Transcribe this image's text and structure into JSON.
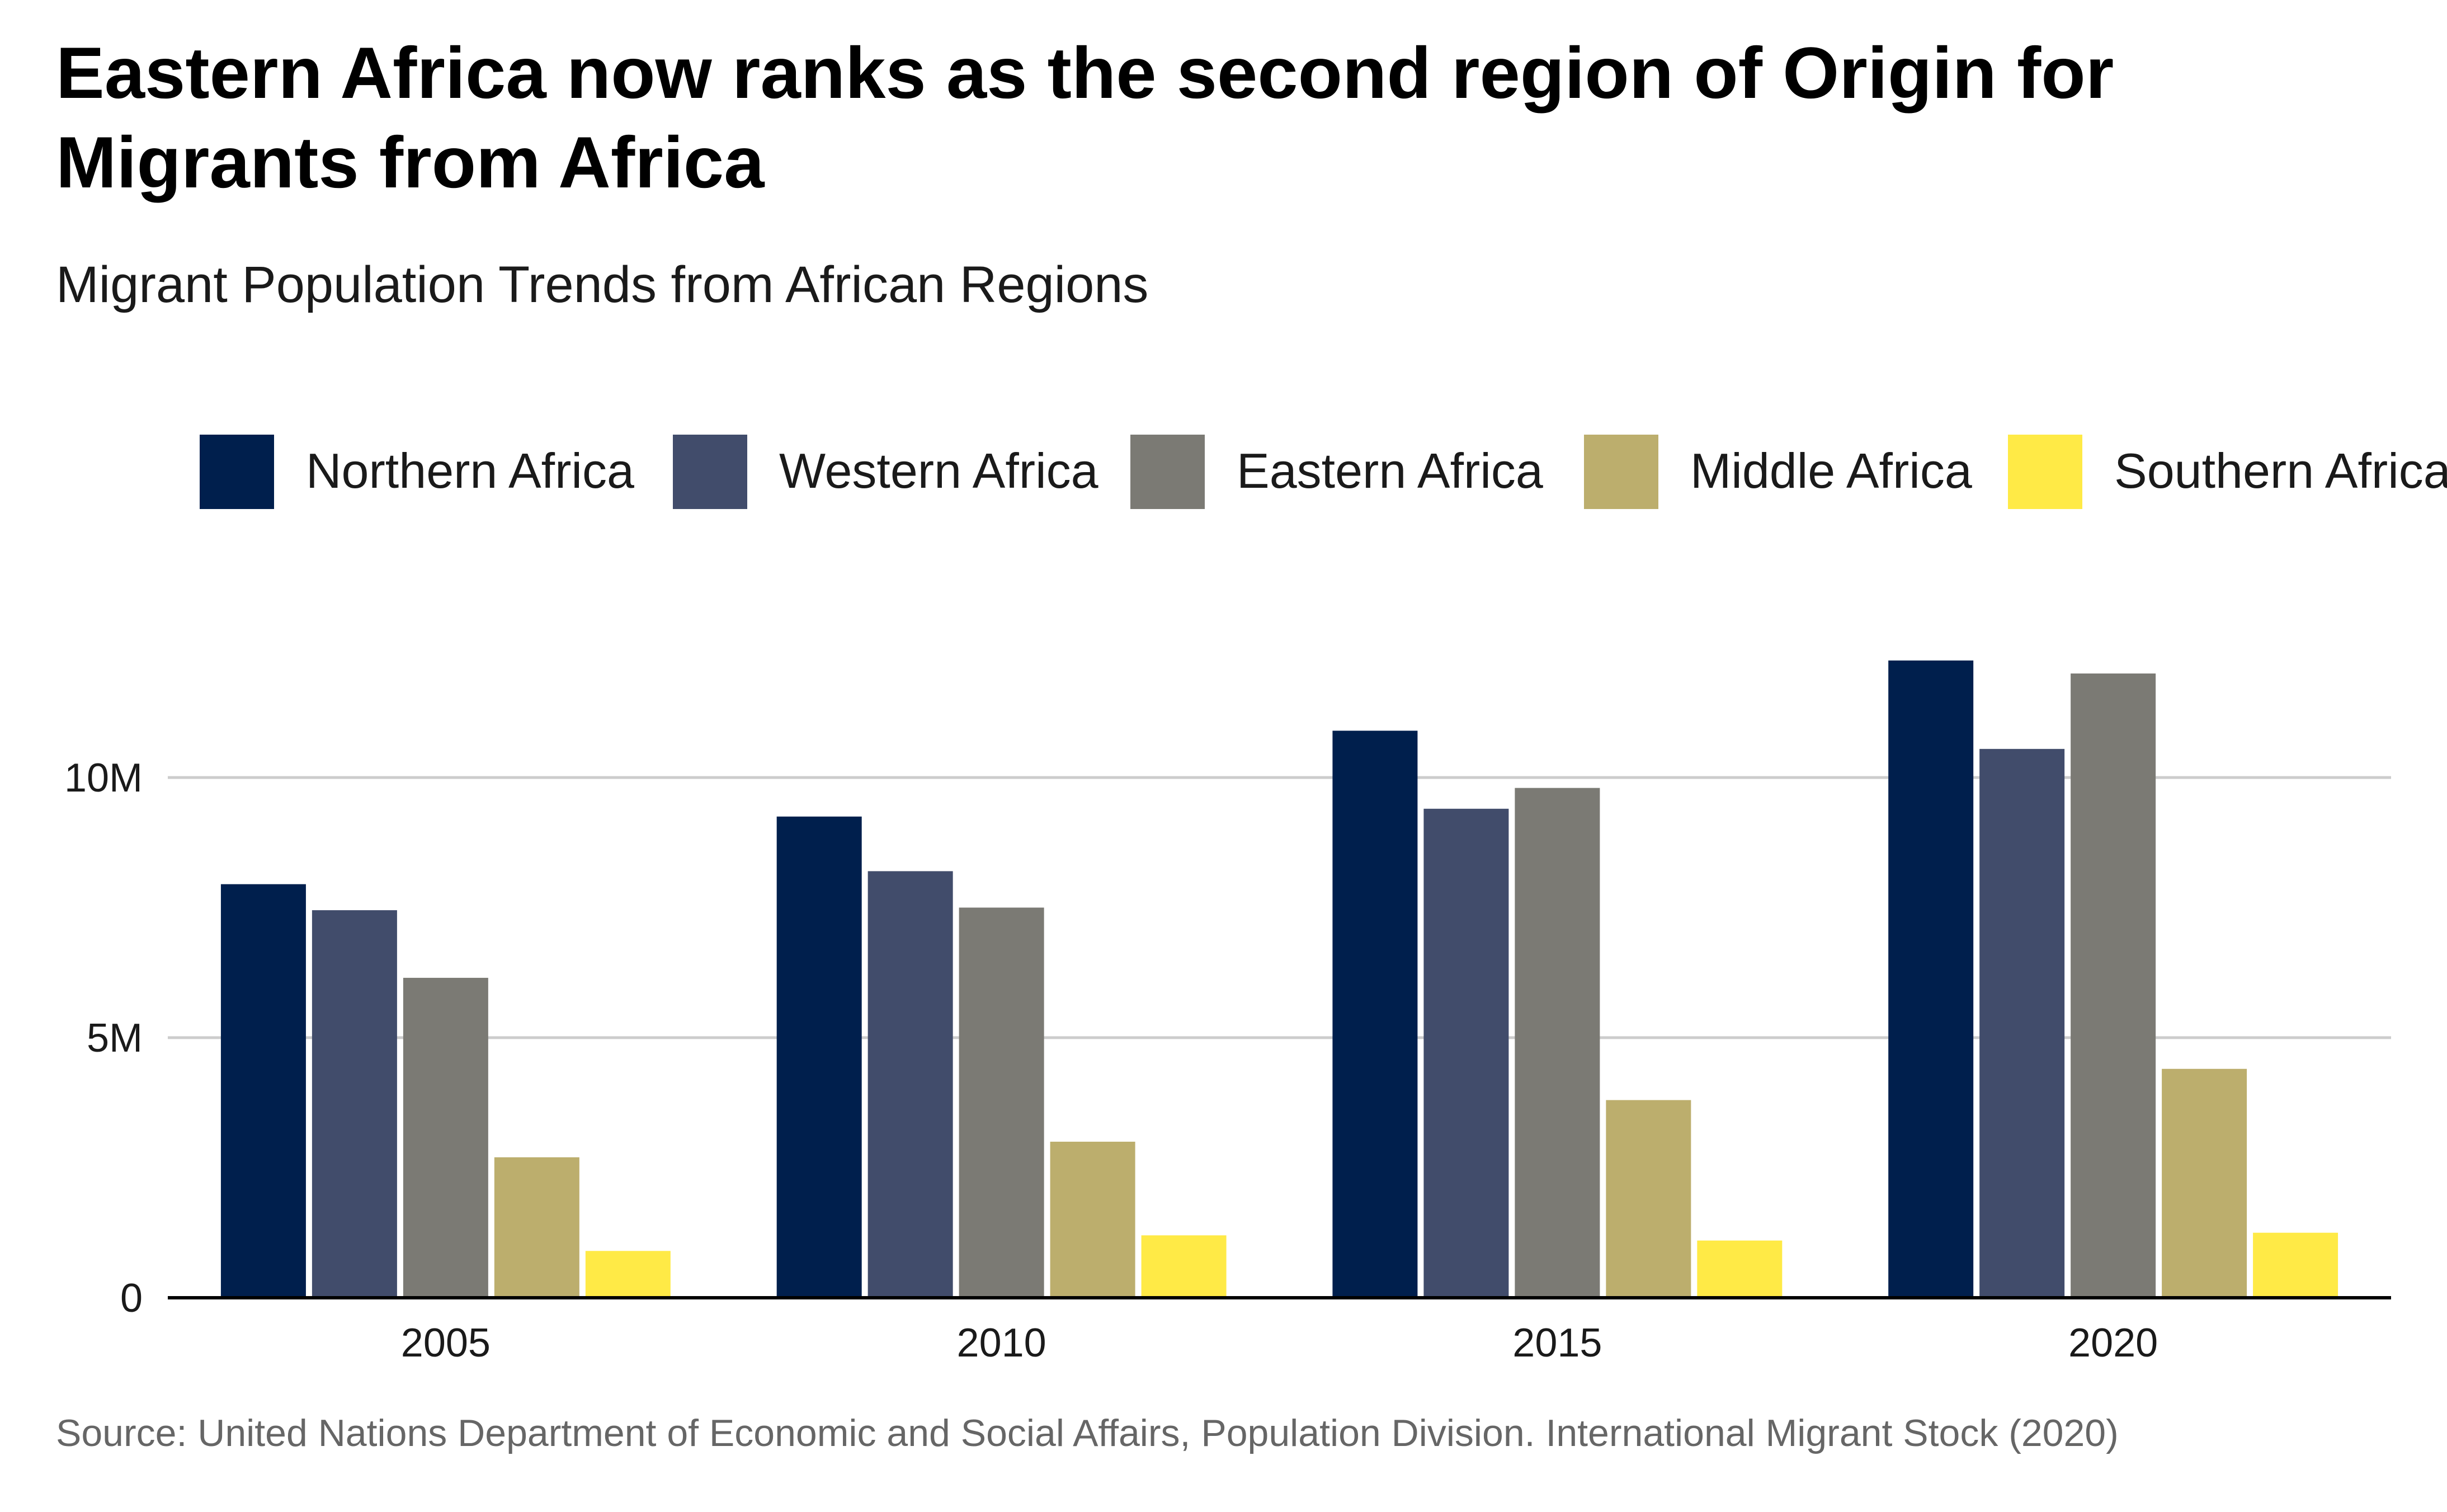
{
  "chart_data": {
    "type": "bar",
    "title": "Eastern Africa now ranks as the second region of Origin for Migrants from Africa",
    "title_lines": [
      "Eastern Africa now ranks as the second region of Origin for",
      "Migrants from Africa"
    ],
    "subtitle": "Migrant Population Trends from African Regions",
    "source": "Source: United Nations Department of Economic and Social Affairs, Population Division. International Migrant Stock (2020)",
    "xlabel": "",
    "ylabel": "",
    "categories": [
      "2005",
      "2010",
      "2015",
      "2020"
    ],
    "ylim": [
      0,
      13000000
    ],
    "yticks": [
      0,
      5000000,
      10000000
    ],
    "ytick_labels": [
      "0",
      "5M",
      "10M"
    ],
    "grid": true,
    "legend_position": "top",
    "series": [
      {
        "name": "Northern Africa",
        "color": "#001f4d",
        "values": [
          7950000,
          9250000,
          10900000,
          12250000
        ]
      },
      {
        "name": "Western Africa",
        "color": "#414c6b",
        "values": [
          7450000,
          8200000,
          9400000,
          10550000
        ]
      },
      {
        "name": "Eastern Africa",
        "color": "#7b7a74",
        "values": [
          6150000,
          7500000,
          9800000,
          12000000
        ]
      },
      {
        "name": "Middle Africa",
        "color": "#bcae6d",
        "values": [
          2700000,
          3000000,
          3800000,
          4400000
        ]
      },
      {
        "name": "Southern Africa",
        "color": "#ffea46",
        "values": [
          900000,
          1200000,
          1100000,
          1250000
        ]
      }
    ]
  }
}
